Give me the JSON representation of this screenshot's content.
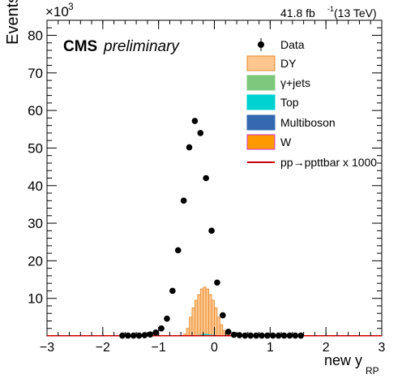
{
  "header": {
    "exponent_base": "×10",
    "exponent_power": "3",
    "lumi_value": "41.8 fb",
    "lumi_sup": "-1",
    "lumi_energy": " (13 TeV)",
    "cms": "CMS",
    "preliminary": "preliminary"
  },
  "colors": {
    "DY": "#fdc68f",
    "DY_line": "#e38a2b",
    "gamma_jets": "#7ec87e",
    "Top": "#00d2d2",
    "Multiboson": "#3468b0",
    "W": "#ff9900",
    "W_line": "#cc33cc",
    "signal": "#cc0000",
    "data": "#000000"
  },
  "chart_data": {
    "type": "bar",
    "xlabel_main": "new y",
    "xlabel_sub": "RP",
    "ylabel": "Events",
    "xlim": [
      -3,
      3
    ],
    "ylim": [
      0,
      84
    ],
    "y_scale_note": "×10^3",
    "x_ticks": [
      -3,
      -2,
      -1,
      0,
      1,
      2,
      3
    ],
    "x_tick_labels": [
      "−3",
      "−2",
      "−1",
      "0",
      "1",
      "2",
      "3"
    ],
    "y_ticks": [
      10,
      20,
      30,
      40,
      50,
      60,
      70,
      80
    ],
    "y_tick_labels": [
      "10",
      "20",
      "30",
      "40",
      "50",
      "60",
      "70",
      "80"
    ],
    "legend": [
      {
        "label": "Data",
        "kind": "marker",
        "color_key": "data"
      },
      {
        "label": "DY",
        "kind": "box",
        "color_key": "DY",
        "line_key": "DY_line"
      },
      {
        "label": "γ+jets",
        "kind": "box",
        "color_key": "gamma_jets",
        "line_key": "gamma_jets"
      },
      {
        "label": "Top",
        "kind": "box",
        "color_key": "Top",
        "line_key": "Top"
      },
      {
        "label": "Multiboson",
        "kind": "box",
        "color_key": "Multiboson",
        "line_key": "Multiboson"
      },
      {
        "label": "W",
        "kind": "box",
        "color_key": "W",
        "line_key": "W_line"
      },
      {
        "label": "pp→ppttbar x 1000",
        "kind": "line",
        "color_key": "signal"
      }
    ],
    "data_points": {
      "x": [
        -1.65,
        -1.55,
        -1.45,
        -1.35,
        -1.25,
        -1.15,
        -1.05,
        -0.95,
        -0.85,
        -0.75,
        -0.65,
        -0.55,
        -0.45,
        -0.35,
        -0.25,
        -0.15,
        -0.05,
        0.05,
        0.15,
        0.25,
        0.35,
        0.45,
        0.55,
        0.65,
        0.75,
        0.85,
        0.95,
        1.05,
        1.15,
        1.25,
        1.35,
        1.45,
        1.55
      ],
      "y": [
        0.1,
        0.1,
        0.1,
        0.1,
        0.2,
        0.4,
        0.9,
        2.0,
        4.6,
        12.0,
        22.8,
        36.0,
        50.2,
        57.2,
        54.0,
        42.0,
        28.0,
        14.2,
        5.5,
        1.1,
        0.3,
        0.2,
        0.1,
        0.1,
        0.1,
        0.1,
        0.1,
        0.1,
        0.1,
        0.1,
        0.1,
        0.1,
        0.1
      ]
    },
    "dy_hist": {
      "bin_width": 0.05,
      "x_low": [
        -0.55,
        -0.5,
        -0.45,
        -0.4,
        -0.35,
        -0.3,
        -0.25,
        -0.2,
        -0.15,
        -0.1,
        -0.05,
        0.0,
        0.05,
        0.1,
        0.15,
        0.2,
        0.25,
        0.3
      ],
      "values": [
        0.5,
        2.0,
        5.0,
        7.5,
        9.5,
        11.0,
        12.5,
        13.0,
        12.5,
        11.0,
        9.5,
        7.5,
        5.0,
        3.0,
        1.5,
        0.6,
        0.2,
        0.0
      ]
    },
    "top_hist": {
      "x_low": [
        -0.4,
        -0.35,
        -0.3,
        -0.25,
        -0.2,
        -0.15,
        -0.1,
        -0.05,
        0.0,
        0.05
      ],
      "values": [
        0.1,
        0.2,
        0.3,
        0.4,
        0.5,
        0.5,
        0.4,
        0.3,
        0.2,
        0.1
      ]
    },
    "signal_level": 0.05
  }
}
